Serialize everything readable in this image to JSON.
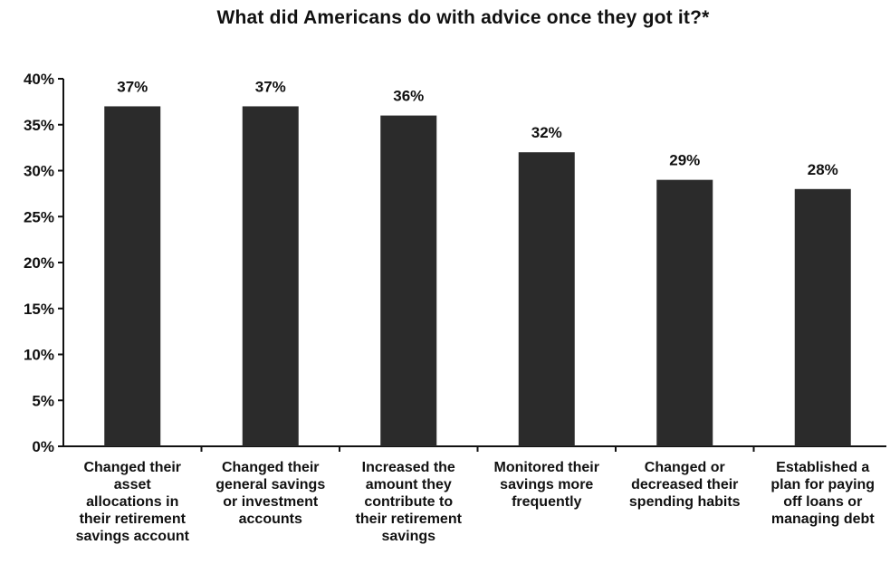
{
  "chart_data": {
    "type": "bar",
    "title": "What did Americans do with advice once they got it?*",
    "xlabel": "",
    "ylabel": "",
    "ylim": [
      0,
      40
    ],
    "y_ticks": [
      "0%",
      "5%",
      "10%",
      "15%",
      "20%",
      "25%",
      "30%",
      "35%",
      "40%"
    ],
    "y_tick_values": [
      0,
      5,
      10,
      15,
      20,
      25,
      30,
      35,
      40
    ],
    "categories": [
      [
        "Changed their",
        "asset",
        "allocations in",
        "their retirement",
        "savings account"
      ],
      [
        "Changed their",
        "general savings",
        "or investment",
        "accounts"
      ],
      [
        "Increased the",
        "amount they",
        "contribute to",
        "their retirement",
        "savings"
      ],
      [
        "Monitored their",
        "savings more",
        "frequently"
      ],
      [
        "Changed or",
        "decreased their",
        "spending habits"
      ],
      [
        "Established a",
        "plan for paying",
        "off loans or",
        "managing debt"
      ]
    ],
    "values": [
      37,
      37,
      36,
      32,
      29,
      28
    ],
    "data_labels": [
      "37%",
      "37%",
      "36%",
      "32%",
      "29%",
      "28%"
    ],
    "bar_color": "#2b2b2b",
    "grid": false,
    "legend": "none"
  }
}
